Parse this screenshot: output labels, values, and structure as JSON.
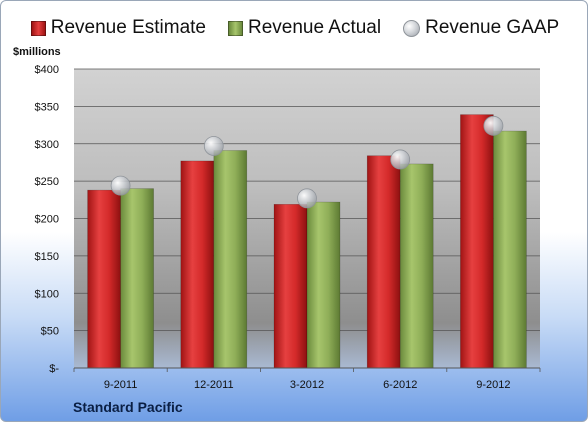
{
  "chart_data": {
    "type": "bar",
    "categories": [
      "9-2011",
      "12-2011",
      "3-2012",
      "6-2012",
      "9-2012"
    ],
    "series": [
      {
        "name": "Revenue Estimate",
        "values": [
          238,
          277,
          219,
          284,
          339
        ],
        "color": "#d42a2a"
      },
      {
        "name": "Revenue Actual",
        "values": [
          240,
          291,
          222,
          273,
          317
        ],
        "color": "#8fae58"
      }
    ],
    "markers": {
      "name": "Revenue GAAP",
      "values": [
        244,
        297,
        227,
        279,
        324
      ],
      "color": "#c5c9ce"
    },
    "ylabel": "$millions",
    "ylim": [
      0,
      400
    ],
    "yticks": [
      0,
      50,
      100,
      150,
      200,
      250,
      300,
      350,
      400
    ],
    "ytick_labels": [
      "$-",
      "$50",
      "$100",
      "$150",
      "$200",
      "$250",
      "$300",
      "$350",
      "$400"
    ],
    "grid": true,
    "legend_position": "top"
  },
  "footer": {
    "company": "Standard Pacific"
  }
}
